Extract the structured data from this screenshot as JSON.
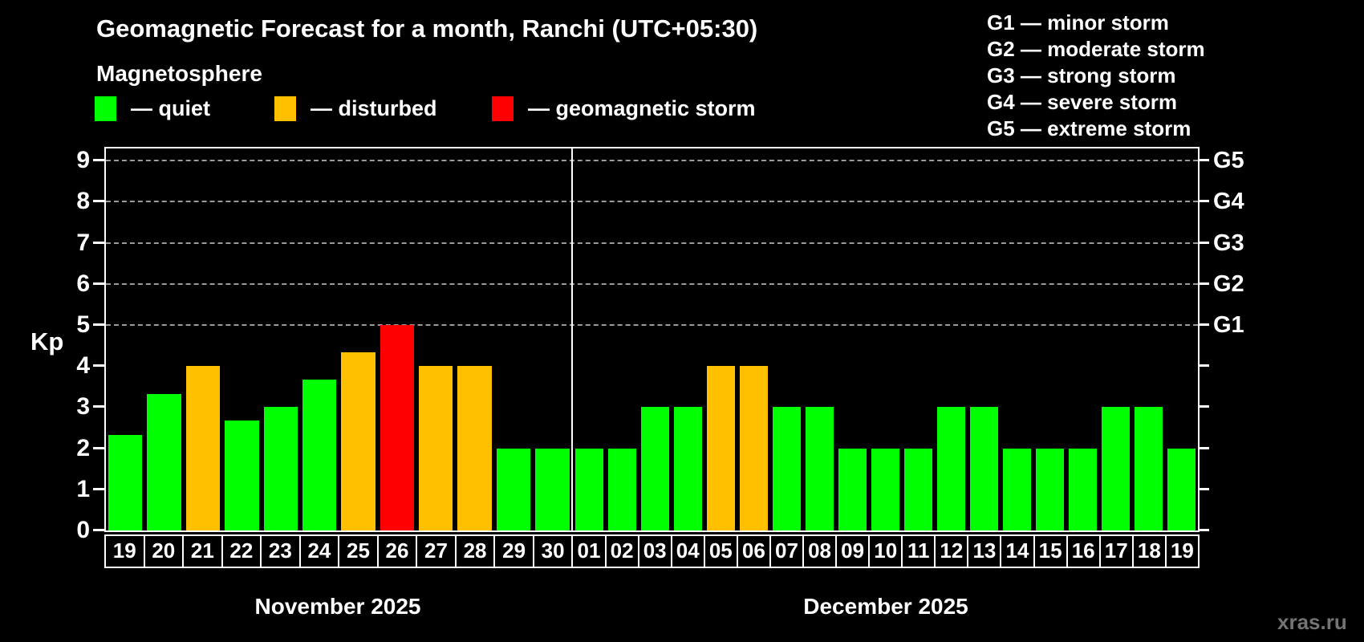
{
  "title": "Geomagnetic Forecast for a month, Ranchi (UTC+05:30)",
  "subtitle": "Magnetosphere",
  "legend": {
    "items": [
      {
        "key": "quiet",
        "label": "— quiet",
        "color": "#00ff00"
      },
      {
        "key": "disturbed",
        "label": "— disturbed",
        "color": "#ffc000"
      },
      {
        "key": "storm",
        "label": "— geomagnetic storm",
        "color": "#ff0000"
      }
    ]
  },
  "g_legend": {
    "items": [
      {
        "label": "G1 — minor storm"
      },
      {
        "label": "G2 — moderate storm"
      },
      {
        "label": "G3 — strong storm"
      },
      {
        "label": "G4 — severe storm"
      },
      {
        "label": "G5 — extreme storm"
      }
    ]
  },
  "watermark": "xras.ru",
  "chart_data": {
    "type": "bar",
    "title": "Geomagnetic Forecast for a month, Ranchi (UTC+05:30)",
    "ylabel": "Kp",
    "ylim": [
      0,
      9.3
    ],
    "yticks": [
      0,
      1,
      2,
      3,
      4,
      5,
      6,
      7,
      8,
      9
    ],
    "grid_levels": [
      5,
      6,
      7,
      8,
      9
    ],
    "grid": "dashed-horizontal-at-storm-levels",
    "legend_position": "top",
    "right_axis": [
      {
        "label": "G1",
        "kp": 5
      },
      {
        "label": "G2",
        "kp": 6
      },
      {
        "label": "G3",
        "kp": 7
      },
      {
        "label": "G4",
        "kp": 8
      },
      {
        "label": "G5",
        "kp": 9
      }
    ],
    "colors": {
      "quiet": "#00ff00",
      "disturbed": "#ffc000",
      "storm": "#ff0000"
    },
    "month_width_fractions": [
      0.4265,
      0.5735
    ],
    "months": [
      {
        "label": "November 2025",
        "days": [
          {
            "day": "19",
            "kp": 2.33,
            "status": "quiet"
          },
          {
            "day": "20",
            "kp": 3.33,
            "status": "quiet"
          },
          {
            "day": "21",
            "kp": 4.0,
            "status": "disturbed"
          },
          {
            "day": "22",
            "kp": 2.67,
            "status": "quiet"
          },
          {
            "day": "23",
            "kp": 3.0,
            "status": "quiet"
          },
          {
            "day": "24",
            "kp": 3.67,
            "status": "quiet"
          },
          {
            "day": "25",
            "kp": 4.33,
            "status": "disturbed"
          },
          {
            "day": "26",
            "kp": 5.0,
            "status": "storm"
          },
          {
            "day": "27",
            "kp": 4.0,
            "status": "disturbed"
          },
          {
            "day": "28",
            "kp": 4.0,
            "status": "disturbed"
          },
          {
            "day": "29",
            "kp": 2.0,
            "status": "quiet"
          },
          {
            "day": "30",
            "kp": 2.0,
            "status": "quiet"
          }
        ]
      },
      {
        "label": "December 2025",
        "days": [
          {
            "day": "01",
            "kp": 2.0,
            "status": "quiet"
          },
          {
            "day": "02",
            "kp": 2.0,
            "status": "quiet"
          },
          {
            "day": "03",
            "kp": 3.0,
            "status": "quiet"
          },
          {
            "day": "04",
            "kp": 3.0,
            "status": "quiet"
          },
          {
            "day": "05",
            "kp": 4.0,
            "status": "disturbed"
          },
          {
            "day": "06",
            "kp": 4.0,
            "status": "disturbed"
          },
          {
            "day": "07",
            "kp": 3.0,
            "status": "quiet"
          },
          {
            "day": "08",
            "kp": 3.0,
            "status": "quiet"
          },
          {
            "day": "09",
            "kp": 2.0,
            "status": "quiet"
          },
          {
            "day": "10",
            "kp": 2.0,
            "status": "quiet"
          },
          {
            "day": "11",
            "kp": 2.0,
            "status": "quiet"
          },
          {
            "day": "12",
            "kp": 3.0,
            "status": "quiet"
          },
          {
            "day": "13",
            "kp": 3.0,
            "status": "quiet"
          },
          {
            "day": "14",
            "kp": 2.0,
            "status": "quiet"
          },
          {
            "day": "15",
            "kp": 2.0,
            "status": "quiet"
          },
          {
            "day": "16",
            "kp": 2.0,
            "status": "quiet"
          },
          {
            "day": "17",
            "kp": 3.0,
            "status": "quiet"
          },
          {
            "day": "18",
            "kp": 3.0,
            "status": "quiet"
          },
          {
            "day": "19",
            "kp": 2.0,
            "status": "quiet"
          }
        ]
      }
    ]
  }
}
